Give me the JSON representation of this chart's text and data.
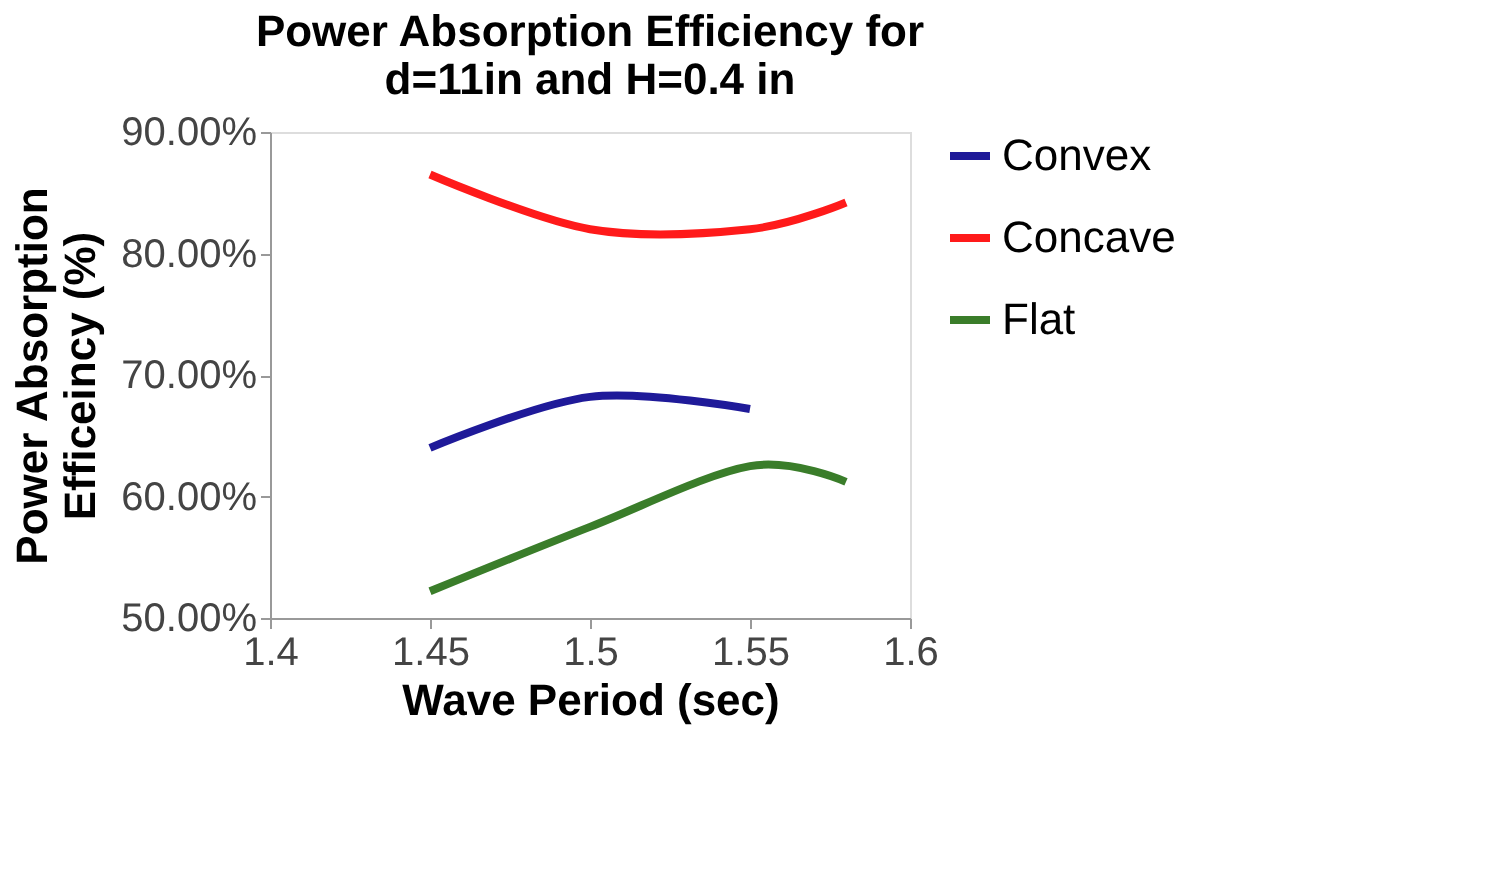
{
  "chart_data": {
    "type": "line",
    "title": [
      "Power Absorption Efficiency for",
      "d=11in and H=0.4 in"
    ],
    "xlabel": "Wave Period (sec)",
    "ylabel": [
      "Power Absorption",
      "Efficeincy (%)"
    ],
    "xlim": [
      1.4,
      1.6
    ],
    "xticks": [
      1.4,
      1.45,
      1.5,
      1.55,
      1.6
    ],
    "ylim": [
      50,
      90
    ],
    "yticks": [
      {
        "value": 50,
        "label": "50.00%"
      },
      {
        "value": 60,
        "label": "60.00%"
      },
      {
        "value": 70,
        "label": "70.00%"
      },
      {
        "value": 80,
        "label": "80.00%"
      },
      {
        "value": 90,
        "label": "90.00%"
      }
    ],
    "grid": false,
    "legend": "right",
    "marker": "none",
    "line_style": "solid",
    "series": [
      {
        "name": "Convex",
        "color": "#1f1a99",
        "x": [
          1.45,
          1.5,
          1.55
        ],
        "values": [
          64.0,
          68.2,
          67.2
        ]
      },
      {
        "name": "Concave",
        "color": "#ff1a1a",
        "x": [
          1.45,
          1.5,
          1.55,
          1.58
        ],
        "values": [
          86.5,
          82.0,
          82.0,
          84.2
        ]
      },
      {
        "name": "Flat",
        "color": "#3a7d2a",
        "x": [
          1.45,
          1.5,
          1.55,
          1.58
        ],
        "values": [
          52.2,
          57.5,
          62.5,
          61.2
        ]
      }
    ]
  }
}
